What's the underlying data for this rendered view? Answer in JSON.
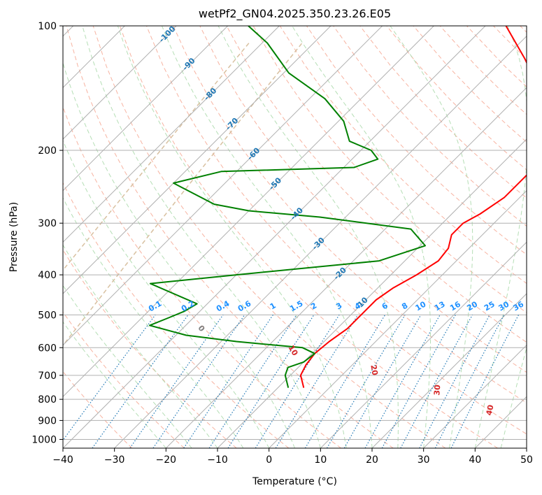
{
  "chart_data": {
    "type": "line",
    "title": "wetPf2_GN04.2025.350.23.26.E05",
    "xlabel": "Temperature (°C)",
    "ylabel": "Pressure (hPa)",
    "xlim": [
      -40,
      50
    ],
    "ylim": [
      1050,
      100
    ],
    "y_scale": "log",
    "skew": "skew-T",
    "grid": true,
    "x_ticks": [
      -40,
      -30,
      -20,
      -10,
      0,
      10,
      20,
      30,
      40,
      50
    ],
    "y_ticks": [
      100,
      200,
      300,
      400,
      500,
      600,
      700,
      800,
      900,
      1000
    ],
    "series": [
      {
        "color": "#ff0000",
        "points": [
          {
            "p": 750,
            "t": -5.0
          },
          {
            "p": 700,
            "t": -8.0
          },
          {
            "p": 660,
            "t": -9.0
          },
          {
            "p": 620,
            "t": -9.5
          },
          {
            "p": 580,
            "t": -9.0
          },
          {
            "p": 540,
            "t": -8.0
          },
          {
            "p": 500,
            "t": -8.0
          },
          {
            "p": 460,
            "t": -8.0
          },
          {
            "p": 430,
            "t": -7.0
          },
          {
            "p": 400,
            "t": -5.0
          },
          {
            "p": 370,
            "t": -3.5
          },
          {
            "p": 345,
            "t": -4.0
          },
          {
            "p": 320,
            "t": -6.0
          },
          {
            "p": 300,
            "t": -6.0
          },
          {
            "p": 285,
            "t": -4.5
          },
          {
            "p": 260,
            "t": -3.0
          },
          {
            "p": 230,
            "t": -3.0
          },
          {
            "p": 200,
            "t": -3.5
          },
          {
            "p": 180,
            "t": -6.0
          },
          {
            "p": 160,
            "t": -10.0
          },
          {
            "p": 140,
            "t": -18.0
          },
          {
            "p": 120,
            "t": -26.0
          },
          {
            "p": 100,
            "t": -36.0
          }
        ]
      },
      {
        "color": "#008000",
        "points": [
          {
            "p": 750,
            "t": -8.0
          },
          {
            "p": 700,
            "t": -11.0
          },
          {
            "p": 670,
            "t": -12.0
          },
          {
            "p": 650,
            "t": -10.0
          },
          {
            "p": 620,
            "t": -9.5
          },
          {
            "p": 600,
            "t": -13.0
          },
          {
            "p": 580,
            "t": -27.0
          },
          {
            "p": 560,
            "t": -38.0
          },
          {
            "p": 530,
            "t": -47.0
          },
          {
            "p": 510,
            "t": -45.0
          },
          {
            "p": 490,
            "t": -43.0
          },
          {
            "p": 470,
            "t": -42.0
          },
          {
            "p": 450,
            "t": -47.0
          },
          {
            "p": 420,
            "t": -55.0
          },
          {
            "p": 400,
            "t": -40.0
          },
          {
            "p": 370,
            "t": -15.0
          },
          {
            "p": 340,
            "t": -9.0
          },
          {
            "p": 310,
            "t": -15.0
          },
          {
            "p": 290,
            "t": -35.0
          },
          {
            "p": 280,
            "t": -50.0
          },
          {
            "p": 270,
            "t": -58.0
          },
          {
            "p": 240,
            "t": -70.0
          },
          {
            "p": 225,
            "t": -63.0
          },
          {
            "p": 220,
            "t": -38.0
          },
          {
            "p": 210,
            "t": -35.0
          },
          {
            "p": 200,
            "t": -38.0
          },
          {
            "p": 190,
            "t": -44.0
          },
          {
            "p": 170,
            "t": -49.0
          },
          {
            "p": 150,
            "t": -57.0
          },
          {
            "p": 130,
            "t": -69.0
          },
          {
            "p": 110,
            "t": -79.0
          },
          {
            "p": 100,
            "t": -86.0
          }
        ]
      }
    ],
    "isotherm_labels": [
      "-100",
      "-90",
      "-80",
      "-70",
      "-60",
      "-50",
      "-40",
      "-30",
      "-20",
      "-10"
    ],
    "isotherm_label_values": [
      -100,
      -90,
      -80,
      -70,
      -60,
      -50,
      -40,
      -30,
      -20,
      -10
    ],
    "isotherm_label_color": "#1f77b4",
    "mixing_ratio_labels": [
      "0.1",
      "0.2",
      "0.4",
      "0.6",
      "1",
      "1.5",
      "2",
      "3",
      "4",
      "6",
      "8",
      "10",
      "13",
      "16",
      "20",
      "25",
      "30",
      "36"
    ],
    "mixing_ratio_values": [
      0.1,
      0.2,
      0.4,
      0.6,
      1,
      1.5,
      2,
      3,
      4,
      6,
      8,
      10,
      13,
      16,
      20,
      25,
      30,
      36
    ],
    "mixing_ratio_color": "#1e90ff",
    "moist_adiabat_labels": [
      "0",
      "10",
      "20",
      "30",
      "40"
    ],
    "moist_adiabat_values": [
      0,
      10,
      20,
      30,
      40
    ],
    "moist_adiabat_colors": [
      "#808080",
      "#d62728",
      "#d62728",
      "#d62728",
      "#d62728"
    ],
    "colors": {
      "dry_adiabat": "#f5a08a",
      "moist_adiabat": "#a8d8a8",
      "mixing_ratio": "#1f77b4",
      "isotherm_grid": "#b0b0b0",
      "saturation_curve": "#d8c0a0"
    }
  }
}
